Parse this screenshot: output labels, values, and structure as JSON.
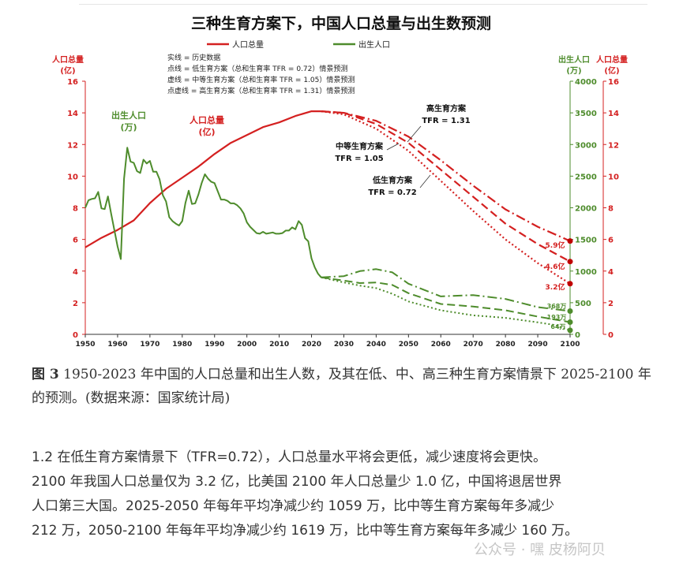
{
  "chart_data": {
    "type": "line",
    "title": "三种生育方案下，中国人口总量与出生数预测",
    "legend": [
      {
        "name": "人口总量",
        "color": "#d42020"
      },
      {
        "name": "出生人口",
        "color": "#4e8c2c"
      }
    ],
    "notes": [
      "实线 = 历史数据",
      "点线 = 低生育方案（总和生育率  TFR = 0.72）情景预测",
      "虚线 = 中等生育方案（总和生育率  TFR = 1.05）情景预测",
      "点虚线 = 高生育方案（总和生育率  TFR = 1.31）情景预测"
    ],
    "left_axis": {
      "label_line1": "人口总量",
      "label_line2": "(亿)",
      "range": [
        0,
        16
      ],
      "ticks": [
        0,
        2,
        4,
        6,
        8,
        10,
        12,
        14,
        16
      ],
      "color": "#d42020"
    },
    "right_axis_births": {
      "label_line1": "出生人口",
      "label_line2": "(万)",
      "range": [
        0,
        4000
      ],
      "ticks": [
        0,
        500,
        1000,
        1500,
        2000,
        2500,
        3000,
        3500,
        4000
      ],
      "color": "#4e8c2c"
    },
    "right_axis_pop": {
      "label_line1": "人口总量",
      "label_line2": "(亿)",
      "range": [
        0,
        16
      ],
      "ticks": [
        0,
        2,
        4,
        6,
        8,
        10,
        12,
        14,
        16
      ],
      "color": "#d42020"
    },
    "x_axis": {
      "range": [
        1950,
        2100
      ],
      "ticks": [
        1950,
        1960,
        1970,
        1980,
        1990,
        2000,
        2010,
        2020,
        2030,
        2040,
        2050,
        2060,
        2070,
        2080,
        2090,
        2100
      ]
    },
    "series": [
      {
        "name": "人口总量",
        "scenario": "历史数据",
        "x": [
          1950,
          1955,
          1960,
          1965,
          1970,
          1975,
          1980,
          1985,
          1990,
          1995,
          2000,
          2005,
          2010,
          2015,
          2020,
          2023
        ],
        "y": [
          5.5,
          6.1,
          6.6,
          7.2,
          8.3,
          9.2,
          9.9,
          10.6,
          11.4,
          12.1,
          12.6,
          13.1,
          13.4,
          13.8,
          14.1,
          14.1
        ]
      },
      {
        "name": "人口总量",
        "scenario": "低生育方案",
        "x": [
          2023,
          2030,
          2040,
          2050,
          2060,
          2070,
          2080,
          2090,
          2100
        ],
        "y": [
          14.1,
          13.9,
          13.0,
          11.6,
          9.7,
          7.8,
          6.0,
          4.5,
          3.2
        ]
      },
      {
        "name": "人口总量",
        "scenario": "中等生育方案",
        "x": [
          2023,
          2030,
          2040,
          2050,
          2060,
          2070,
          2080,
          2090,
          2100
        ],
        "y": [
          14.1,
          14.0,
          13.3,
          12.1,
          10.4,
          8.7,
          7.0,
          5.7,
          4.6
        ]
      },
      {
        "name": "人口总量",
        "scenario": "高生育方案",
        "x": [
          2023,
          2030,
          2040,
          2050,
          2060,
          2070,
          2080,
          2090,
          2100
        ],
        "y": [
          14.1,
          14.0,
          13.5,
          12.5,
          11.0,
          9.4,
          7.9,
          6.8,
          5.9
        ]
      },
      {
        "name": "出生人口",
        "scenario": "历史数据",
        "x": [
          1950,
          1951,
          1952,
          1953,
          1954,
          1955,
          1956,
          1957,
          1958,
          1959,
          1960,
          1961,
          1962,
          1963,
          1964,
          1965,
          1966,
          1967,
          1968,
          1969,
          1970,
          1971,
          1972,
          1973,
          1974,
          1975,
          1976,
          1977,
          1978,
          1979,
          1980,
          1981,
          1982,
          1983,
          1984,
          1985,
          1986,
          1987,
          1988,
          1989,
          1990,
          1991,
          1992,
          1993,
          1994,
          1995,
          1996,
          1997,
          1998,
          1999,
          2000,
          2001,
          2002,
          2003,
          2004,
          2005,
          2006,
          2007,
          2008,
          2009,
          2010,
          2011,
          2012,
          2013,
          2014,
          2015,
          2016,
          2017,
          2018,
          2019,
          2020,
          2021,
          2022,
          2023
        ],
        "y": [
          2000,
          2120,
          2140,
          2150,
          2250,
          1990,
          1980,
          2180,
          1910,
          1650,
          1390,
          1190,
          2460,
          2950,
          2730,
          2710,
          2580,
          2550,
          2760,
          2700,
          2740,
          2570,
          2570,
          2450,
          2200,
          2100,
          1850,
          1790,
          1750,
          1720,
          1790,
          2080,
          2270,
          2060,
          2070,
          2210,
          2390,
          2530,
          2460,
          2410,
          2390,
          2260,
          2130,
          2130,
          2110,
          2070,
          2070,
          2040,
          1990,
          1910,
          1770,
          1700,
          1650,
          1600,
          1590,
          1620,
          1590,
          1600,
          1610,
          1590,
          1590,
          1600,
          1640,
          1640,
          1690,
          1660,
          1790,
          1730,
          1520,
          1470,
          1200,
          1060,
          960,
          900
        ]
      },
      {
        "name": "出生人口",
        "scenario": "低生育方案",
        "x": [
          2023,
          2030,
          2035,
          2040,
          2045,
          2050,
          2060,
          2070,
          2080,
          2090,
          2095,
          2100
        ],
        "y": [
          900,
          820,
          770,
          730,
          640,
          520,
          380,
          300,
          260,
          190,
          150,
          64
        ]
      },
      {
        "name": "出生人口",
        "scenario": "中等生育方案",
        "x": [
          2023,
          2030,
          2035,
          2040,
          2045,
          2050,
          2060,
          2070,
          2080,
          2090,
          2100
        ],
        "y": [
          900,
          850,
          810,
          820,
          780,
          650,
          480,
          440,
          380,
          280,
          193
        ]
      },
      {
        "name": "出生人口",
        "scenario": "高生育方案",
        "x": [
          2023,
          2030,
          2035,
          2040,
          2045,
          2050,
          2060,
          2070,
          2080,
          2090,
          2100
        ],
        "y": [
          900,
          920,
          1000,
          1030,
          980,
          800,
          600,
          620,
          560,
          430,
          368
        ]
      }
    ],
    "annotations": {
      "high": {
        "line1": "高生育方案",
        "line2": "TFR = 1.31"
      },
      "mid": {
        "line1": "中等生育方案",
        "line2": "TFR = 1.05"
      },
      "low": {
        "line1": "低生育方案",
        "line2": "TFR = 0.72"
      },
      "births_label": {
        "line1": "出生人口",
        "line2": "(万)"
      },
      "pop_label": {
        "line1": "人口总量",
        "line2": "(亿)"
      },
      "end_labels": {
        "pop_high": "5.9亿",
        "pop_mid": "4.6亿",
        "pop_low": "3.2亿",
        "b_high": "368万",
        "b_mid": "193万",
        "b_low": "64万"
      }
    }
  },
  "caption": {
    "prefix": "图 3",
    "text": " 1950-2023 年中国的人口总量和出生人数，及其在低、中、高三种生育方案情景下 2025-2100 年的预测。(数据来源：国家统计局)"
  },
  "paragraph": {
    "lines": [
      "1.2 在低生育方案情景下（TFR=0.72），人口总量水平将会更低，减少速度将会更快。",
      "2100 年我国人口总量仅为 3.2 亿，比美国 2100 年人口总量少 1.0 亿，中国将退居世界",
      "人口第三大国。2025-2050 年每年平均净减少约 1059 万，比中等生育方案每年多减少",
      "212 万，2050-2100 年每年平均净减少约 1619 万，比中等生育方案每年多减少 160 万。"
    ]
  },
  "watermark": "公众号 · 嘿 皮杨阿贝"
}
